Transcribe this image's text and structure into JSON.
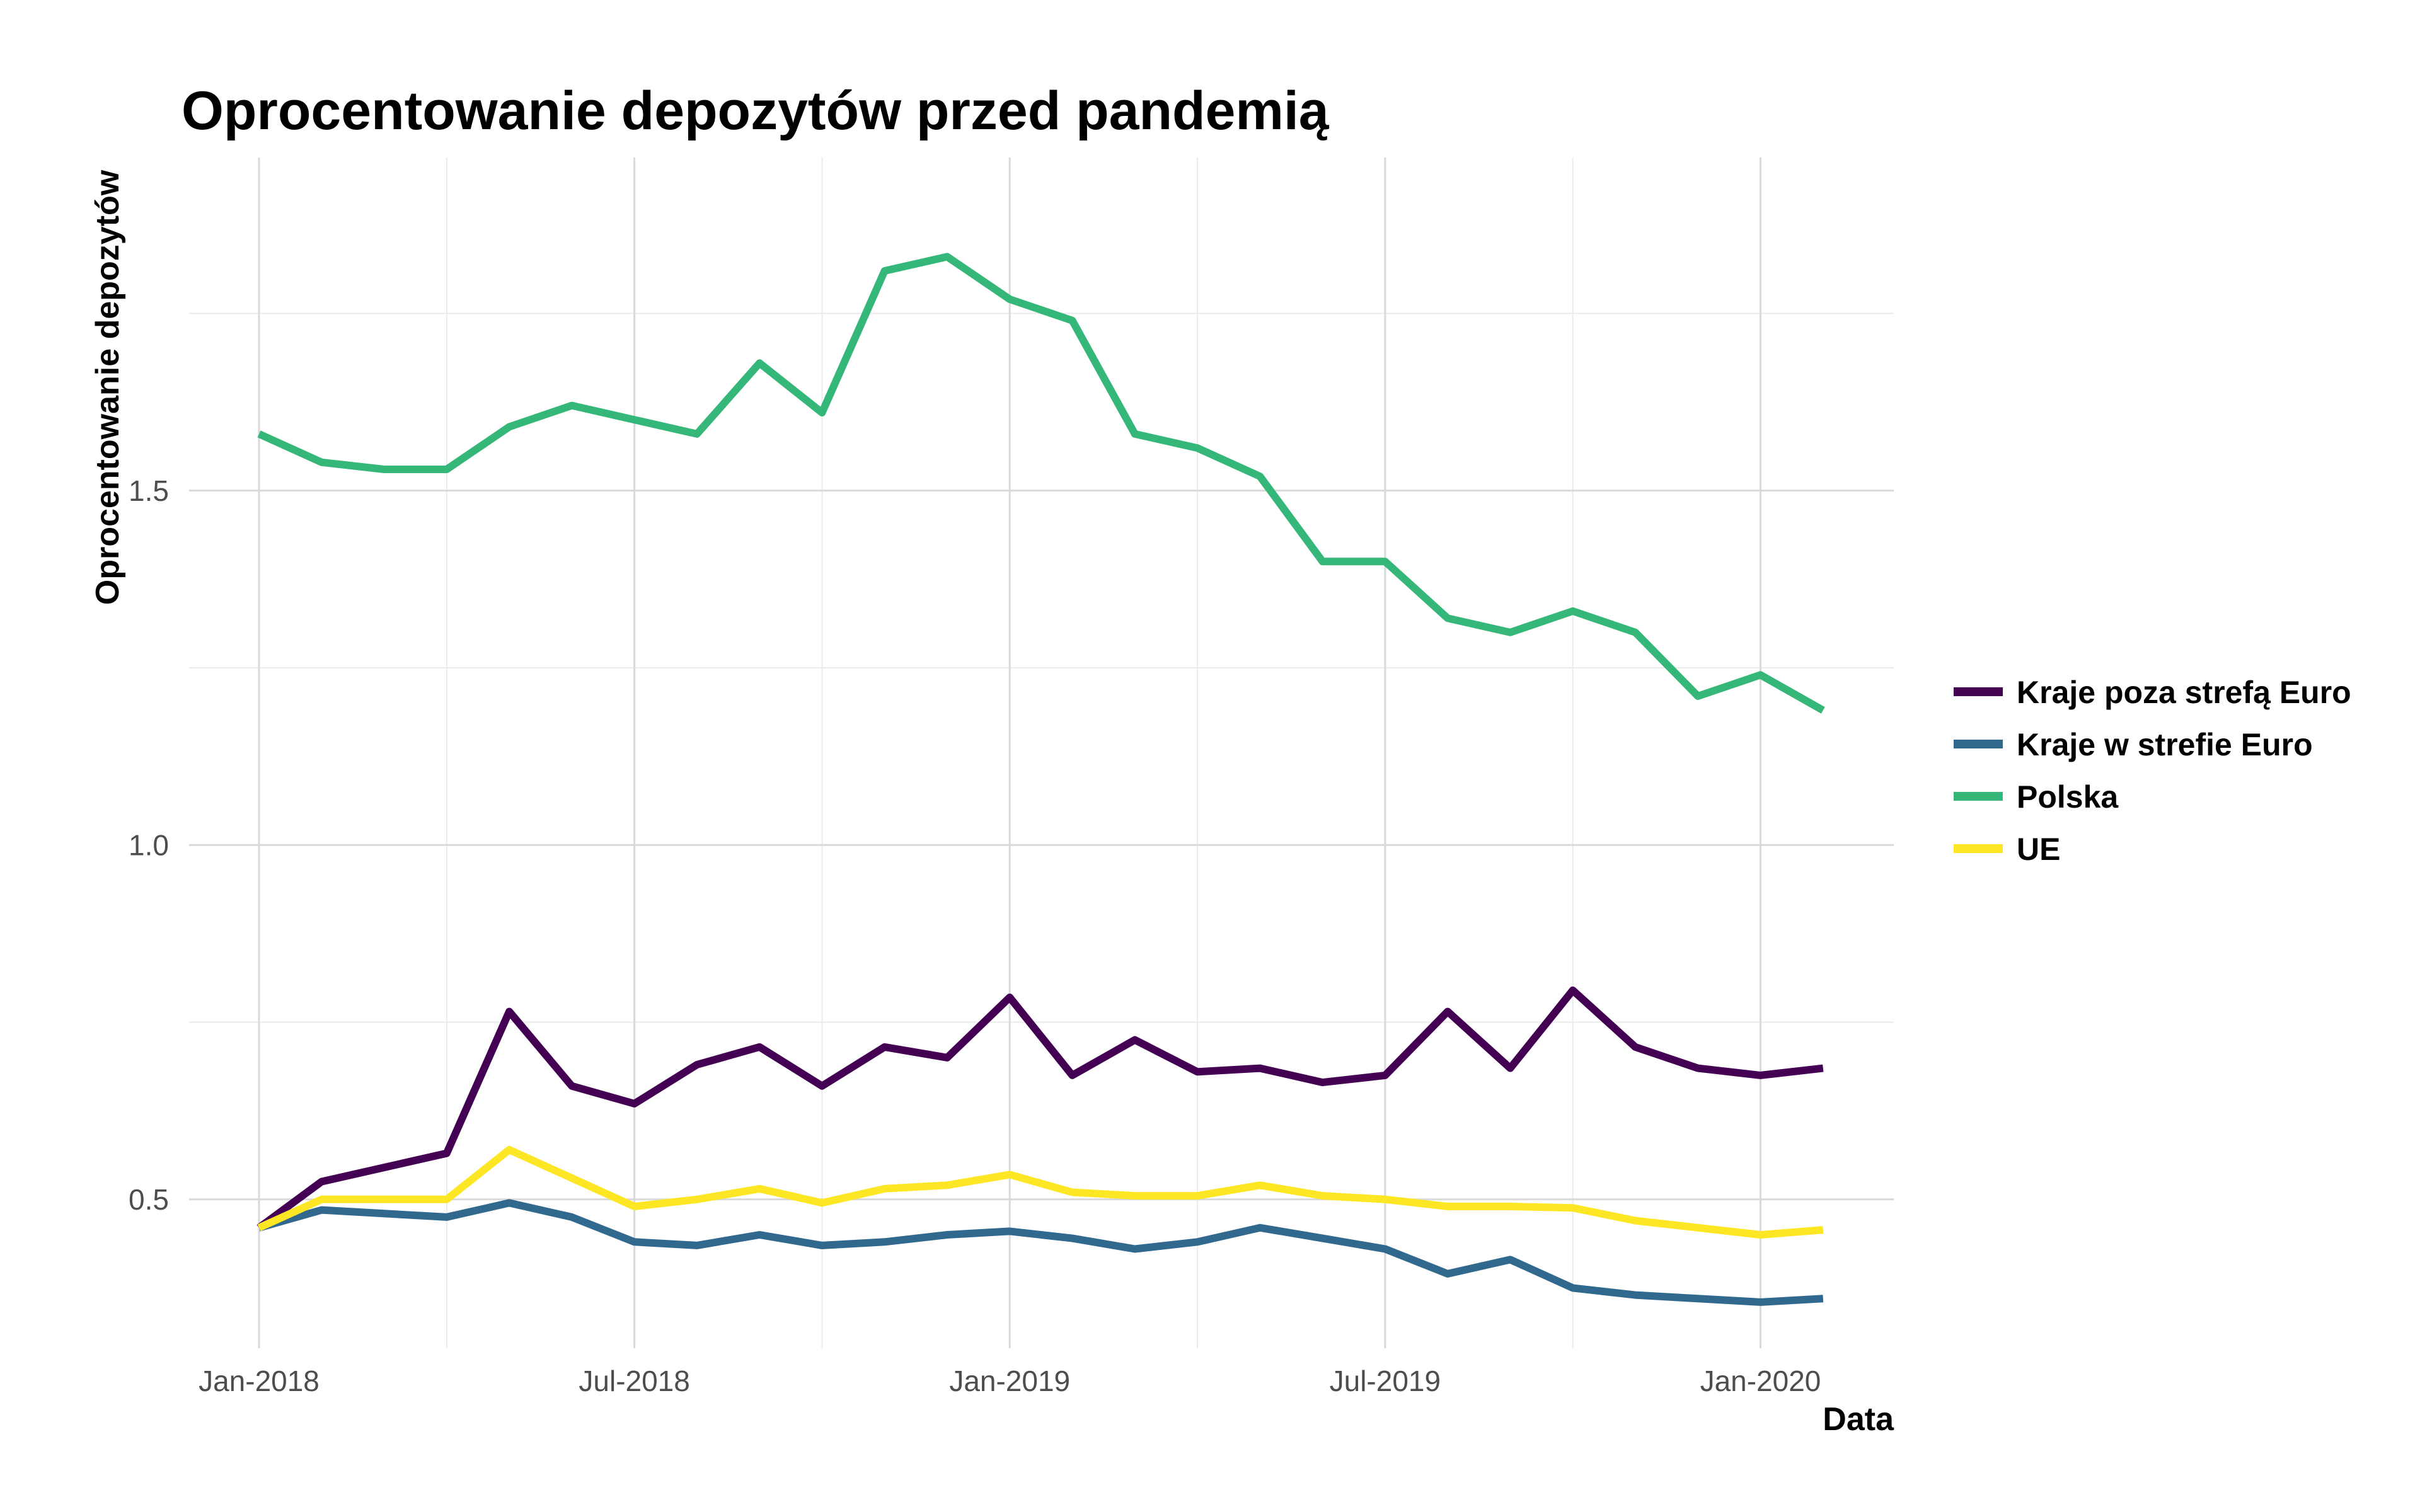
{
  "chart_data": {
    "type": "line",
    "title": "Oprocentowanie depozytów przed pandemią",
    "xlabel": "Data",
    "ylabel": "Oprocentowanie depozytów",
    "x": [
      "2018-01",
      "2018-02",
      "2018-03",
      "2018-04",
      "2018-05",
      "2018-06",
      "2018-07",
      "2018-08",
      "2018-09",
      "2018-10",
      "2018-11",
      "2018-12",
      "2019-01",
      "2019-02",
      "2019-03",
      "2019-04",
      "2019-05",
      "2019-06",
      "2019-07",
      "2019-08",
      "2019-09",
      "2019-10",
      "2019-11",
      "2019-12",
      "2020-01",
      "2020-02"
    ],
    "x_ticks": [
      {
        "label": "Jan-2018",
        "x": "2018-01"
      },
      {
        "label": "Jul-2018",
        "x": "2018-07"
      },
      {
        "label": "Jan-2019",
        "x": "2019-01"
      },
      {
        "label": "Jul-2019",
        "x": "2019-07"
      },
      {
        "label": "Jan-2020",
        "x": "2020-01"
      }
    ],
    "y_ticks": [
      {
        "label": "0.5",
        "value": 0.5
      },
      {
        "label": "1.0",
        "value": 1.0
      },
      {
        "label": "1.5",
        "value": 1.5
      }
    ],
    "ylim": [
      0.29,
      1.97
    ],
    "grid": true,
    "legend_position": "right",
    "series": [
      {
        "name": "Kraje poza strefą Euro",
        "color": "#440154",
        "values": [
          0.46,
          0.525,
          0.545,
          0.565,
          0.765,
          0.66,
          0.635,
          0.69,
          0.715,
          0.66,
          0.715,
          0.7,
          0.785,
          0.675,
          0.725,
          0.68,
          0.685,
          0.665,
          0.675,
          0.765,
          0.685,
          0.795,
          0.715,
          0.685,
          0.675,
          0.685
        ]
      },
      {
        "name": "Kraje w strefie Euro",
        "color": "#31688e",
        "values": [
          0.46,
          0.485,
          0.48,
          0.475,
          0.495,
          0.475,
          0.44,
          0.435,
          0.45,
          0.435,
          0.44,
          0.45,
          0.455,
          0.445,
          0.43,
          0.44,
          0.46,
          0.445,
          0.43,
          0.395,
          0.415,
          0.375,
          0.365,
          0.36,
          0.355,
          0.36
        ]
      },
      {
        "name": "Polska",
        "color": "#35b779",
        "values": [
          1.58,
          1.54,
          1.53,
          1.53,
          1.59,
          1.62,
          1.6,
          1.58,
          1.68,
          1.61,
          1.81,
          1.83,
          1.77,
          1.74,
          1.58,
          1.56,
          1.52,
          1.4,
          1.4,
          1.32,
          1.3,
          1.33,
          1.3,
          1.21,
          1.24,
          1.19
        ]
      },
      {
        "name": "UE",
        "color": "#fde725",
        "values": [
          0.46,
          0.5,
          0.5,
          0.5,
          0.57,
          0.53,
          0.49,
          0.5,
          0.515,
          0.495,
          0.515,
          0.52,
          0.535,
          0.51,
          0.505,
          0.505,
          0.52,
          0.505,
          0.5,
          0.49,
          0.49,
          0.488,
          0.47,
          0.46,
          0.45,
          0.457
        ]
      }
    ]
  }
}
